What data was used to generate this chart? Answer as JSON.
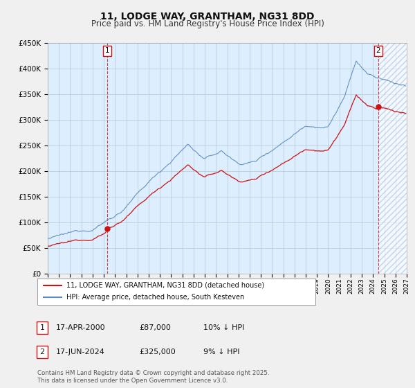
{
  "title": "11, LODGE WAY, GRANTHAM, NG31 8DD",
  "subtitle": "Price paid vs. HM Land Registry's House Price Index (HPI)",
  "title_fontsize": 10,
  "subtitle_fontsize": 8.5,
  "background_color": "#f0f0f0",
  "plot_bg_color": "#ddeeff",
  "hatch_color": "#c8d8e8",
  "hpi_color": "#5588bb",
  "sale_color": "#cc1111",
  "xlim": [
    1995,
    2027
  ],
  "ylim": [
    0,
    450000
  ],
  "ytick_labels": [
    "£0",
    "£50K",
    "£100K",
    "£150K",
    "£200K",
    "£250K",
    "£300K",
    "£350K",
    "£400K",
    "£450K"
  ],
  "ytick_values": [
    0,
    50000,
    100000,
    150000,
    200000,
    250000,
    300000,
    350000,
    400000,
    450000
  ],
  "xtick_years": [
    1995,
    1996,
    1997,
    1998,
    1999,
    2000,
    2001,
    2002,
    2003,
    2004,
    2005,
    2006,
    2007,
    2008,
    2009,
    2010,
    2011,
    2012,
    2013,
    2014,
    2015,
    2016,
    2017,
    2018,
    2019,
    2020,
    2021,
    2022,
    2023,
    2024,
    2025,
    2026,
    2027
  ],
  "sale1_x": 2000.29,
  "sale1_y": 87000,
  "sale2_x": 2024.46,
  "sale2_y": 325000,
  "legend_label_sale": "11, LODGE WAY, GRANTHAM, NG31 8DD (detached house)",
  "legend_label_hpi": "HPI: Average price, detached house, South Kesteven",
  "annotation1": "1",
  "annotation2": "2",
  "table_row1": [
    "1",
    "17-APR-2000",
    "£87,000",
    "10% ↓ HPI"
  ],
  "table_row2": [
    "2",
    "17-JUN-2024",
    "£325,000",
    "9% ↓ HPI"
  ],
  "footnote": "Contains HM Land Registry data © Crown copyright and database right 2025.\nThis data is licensed under the Open Government Licence v3.0."
}
